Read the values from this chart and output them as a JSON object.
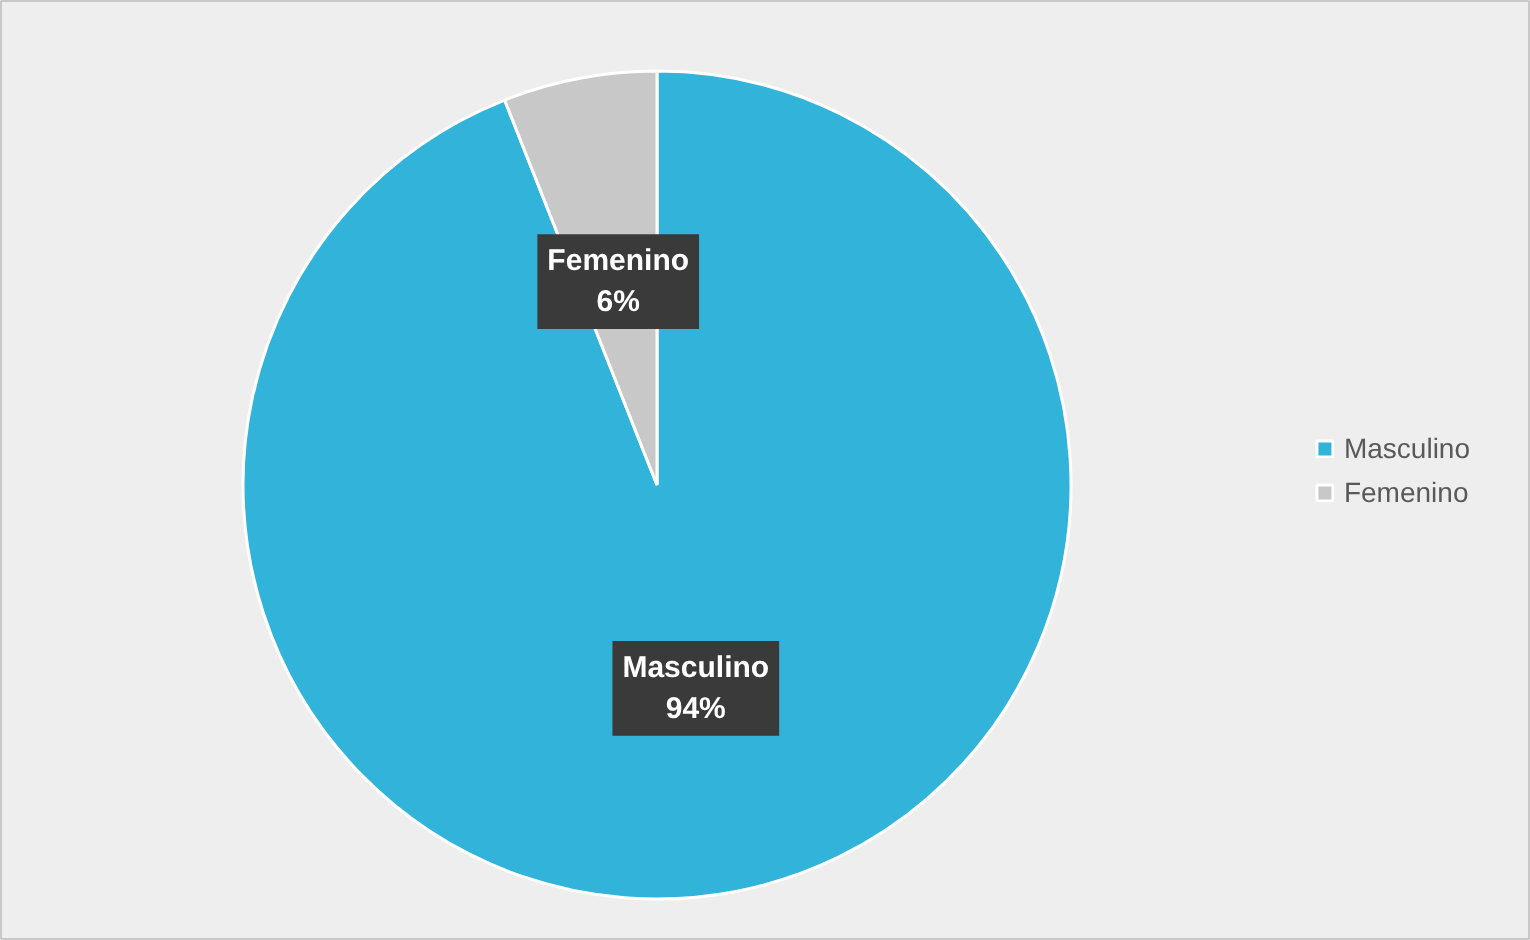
{
  "chart_data": {
    "type": "pie",
    "categories": [
      "Masculino",
      "Femenino"
    ],
    "values": [
      94,
      6
    ],
    "colors": [
      "#31b3da",
      "#c8c8c8"
    ],
    "value_labels": [
      "94%",
      "6%"
    ],
    "legend": "right"
  }
}
